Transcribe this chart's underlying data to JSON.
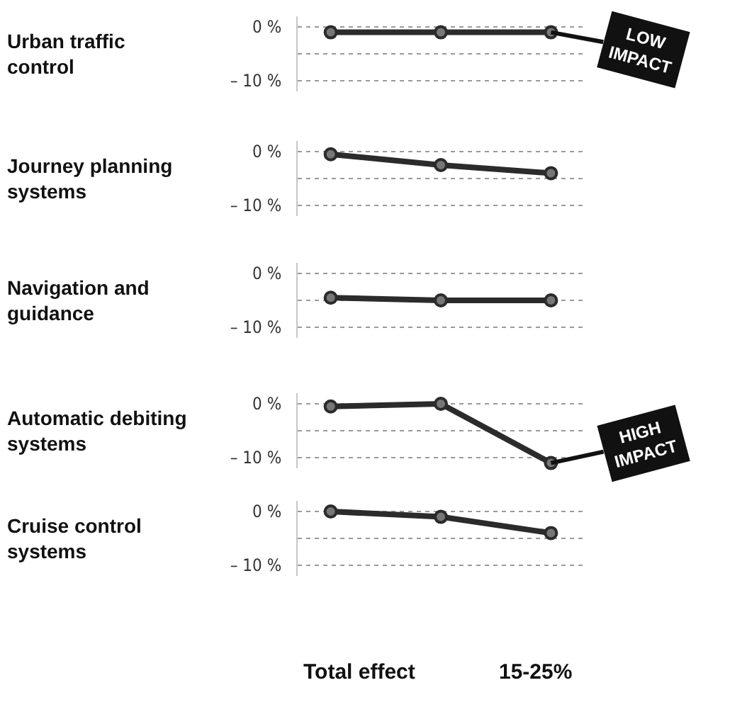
{
  "chart_data": [
    {
      "type": "line",
      "title": "Urban traffic control",
      "categories": [
        null,
        null,
        null
      ],
      "values": [
        -1,
        -1,
        -1
      ],
      "color": "#2b2b2b",
      "ylim": [
        -12,
        2
      ],
      "yticks": [
        {
          "value": 0,
          "label": "0 %"
        },
        {
          "value": -5,
          "label": null
        },
        {
          "value": -10,
          "label": "– 10 %"
        }
      ],
      "grid": "y",
      "marker": "circle",
      "tick_labels": "y",
      "annotations": [
        "LOW IMPACT"
      ]
    },
    {
      "type": "line",
      "title": "Journey planning systems",
      "categories": [
        null,
        null,
        null
      ],
      "values": [
        -0.5,
        -2.5,
        -4
      ],
      "color": "#2b2b2b",
      "ylim": [
        -12,
        2
      ],
      "yticks": [
        {
          "value": 0,
          "label": "0 %"
        },
        {
          "value": -5,
          "label": null
        },
        {
          "value": -10,
          "label": "– 10 %"
        }
      ],
      "grid": "y",
      "marker": "circle",
      "tick_labels": "y"
    },
    {
      "type": "line",
      "title": "Navigation and guidance",
      "categories": [
        null,
        null,
        null
      ],
      "values": [
        -4.5,
        -5,
        -5
      ],
      "color": "#2b2b2b",
      "ylim": [
        -12,
        2
      ],
      "yticks": [
        {
          "value": 0,
          "label": "0 %"
        },
        {
          "value": -5,
          "label": null
        },
        {
          "value": -10,
          "label": "– 10 %"
        }
      ],
      "grid": "y",
      "marker": "circle",
      "tick_labels": "y"
    },
    {
      "type": "line",
      "title": "Automatic debiting systems",
      "categories": [
        null,
        null,
        null
      ],
      "values": [
        -0.5,
        0,
        -11
      ],
      "color": "#2b2b2b",
      "ylim": [
        -12,
        2
      ],
      "yticks": [
        {
          "value": 0,
          "label": "0 %"
        },
        {
          "value": -5,
          "label": null
        },
        {
          "value": -10,
          "label": "– 10 %"
        }
      ],
      "grid": "y",
      "marker": "circle",
      "tick_labels": "y",
      "annotations": [
        "HIGH IMPACT"
      ]
    },
    {
      "type": "line",
      "title": "Cruise control systems",
      "categories": [
        null,
        null,
        null
      ],
      "values": [
        0,
        -1,
        -4
      ],
      "color": "#2b2b2b",
      "ylim": [
        -12,
        2
      ],
      "yticks": [
        {
          "value": 0,
          "label": "0 %"
        },
        {
          "value": -5,
          "label": null
        },
        {
          "value": -10,
          "label": "– 10 %"
        }
      ],
      "grid": "y",
      "marker": "circle",
      "tick_labels": "y",
      "annotations": [
        "Total effect",
        "15-25%"
      ]
    }
  ]
}
